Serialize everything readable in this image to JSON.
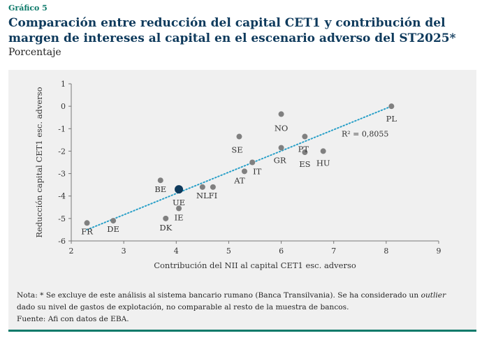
{
  "header": {
    "label": "Gráfico 5",
    "title": "Comparación entre reducción del capital CET1 y contribución del margen de intereses al capital en el escenario adverso del ST2025*",
    "subtitle": "Porcentaje"
  },
  "colors": {
    "accent": "#0d7a6a",
    "title": "#0e3a5c",
    "point": "#808080",
    "highlight": "#0e3a5c",
    "trend": "#2aa0c8",
    "panel": "#f0f0f0"
  },
  "chart_data": {
    "type": "scatter",
    "xlabel": "Contribución del NII al capital CET1 esc. adverso",
    "ylabel": "Reducción capital CET1 esc. adverso",
    "xlim": [
      2,
      9
    ],
    "ylim": [
      -6,
      1
    ],
    "xticks": [
      "2",
      "3",
      "4",
      "5",
      "6",
      "7",
      "8",
      "9"
    ],
    "yticks": [
      "1",
      "0",
      "-1",
      "-2",
      "-3",
      "-4",
      "-5",
      "-6"
    ],
    "points": [
      {
        "label": "FR",
        "x": 2.3,
        "y": -5.2
      },
      {
        "label": "DE",
        "x": 2.8,
        "y": -5.1
      },
      {
        "label": "BE",
        "x": 3.7,
        "y": -3.3
      },
      {
        "label": "DK",
        "x": 3.8,
        "y": -5.0
      },
      {
        "label": "IE",
        "x": 4.05,
        "y": -4.55
      },
      {
        "label": "UE",
        "x": 4.05,
        "y": -3.7,
        "highlight": true
      },
      {
        "label": "NL",
        "x": 4.5,
        "y": -3.6
      },
      {
        "label": "FI",
        "x": 4.7,
        "y": -3.6
      },
      {
        "label": "AT",
        "x": 5.3,
        "y": -2.9
      },
      {
        "label": "IT",
        "x": 5.45,
        "y": -2.5
      },
      {
        "label": "SE",
        "x": 5.2,
        "y": -1.35
      },
      {
        "label": "GR",
        "x": 6.0,
        "y": -1.85
      },
      {
        "label": "NO",
        "x": 6.0,
        "y": -0.35
      },
      {
        "label": "PT",
        "x": 6.45,
        "y": -1.35
      },
      {
        "label": "ES",
        "x": 6.45,
        "y": -2.05
      },
      {
        "label": "HU",
        "x": 6.8,
        "y": -2.0
      },
      {
        "label": "PL",
        "x": 8.1,
        "y": 0.0
      }
    ],
    "trendline": {
      "x": [
        2.3,
        8.1
      ],
      "y": [
        -5.5,
        0.0
      ]
    },
    "annotation": "R² = 0,8055",
    "legend": "none",
    "grid": false
  },
  "notes": {
    "line1_prefix": "Nota: * Se excluye de este análisis al sistema bancario rumano (Banca Transilvania). Se ha considerado un ",
    "line1_italic": "outlier",
    "line2": "dado su nivel de gastos de explotación, no comparable al resto de la muestra de bancos.",
    "source": "Fuente: Afi con datos de EBA."
  }
}
